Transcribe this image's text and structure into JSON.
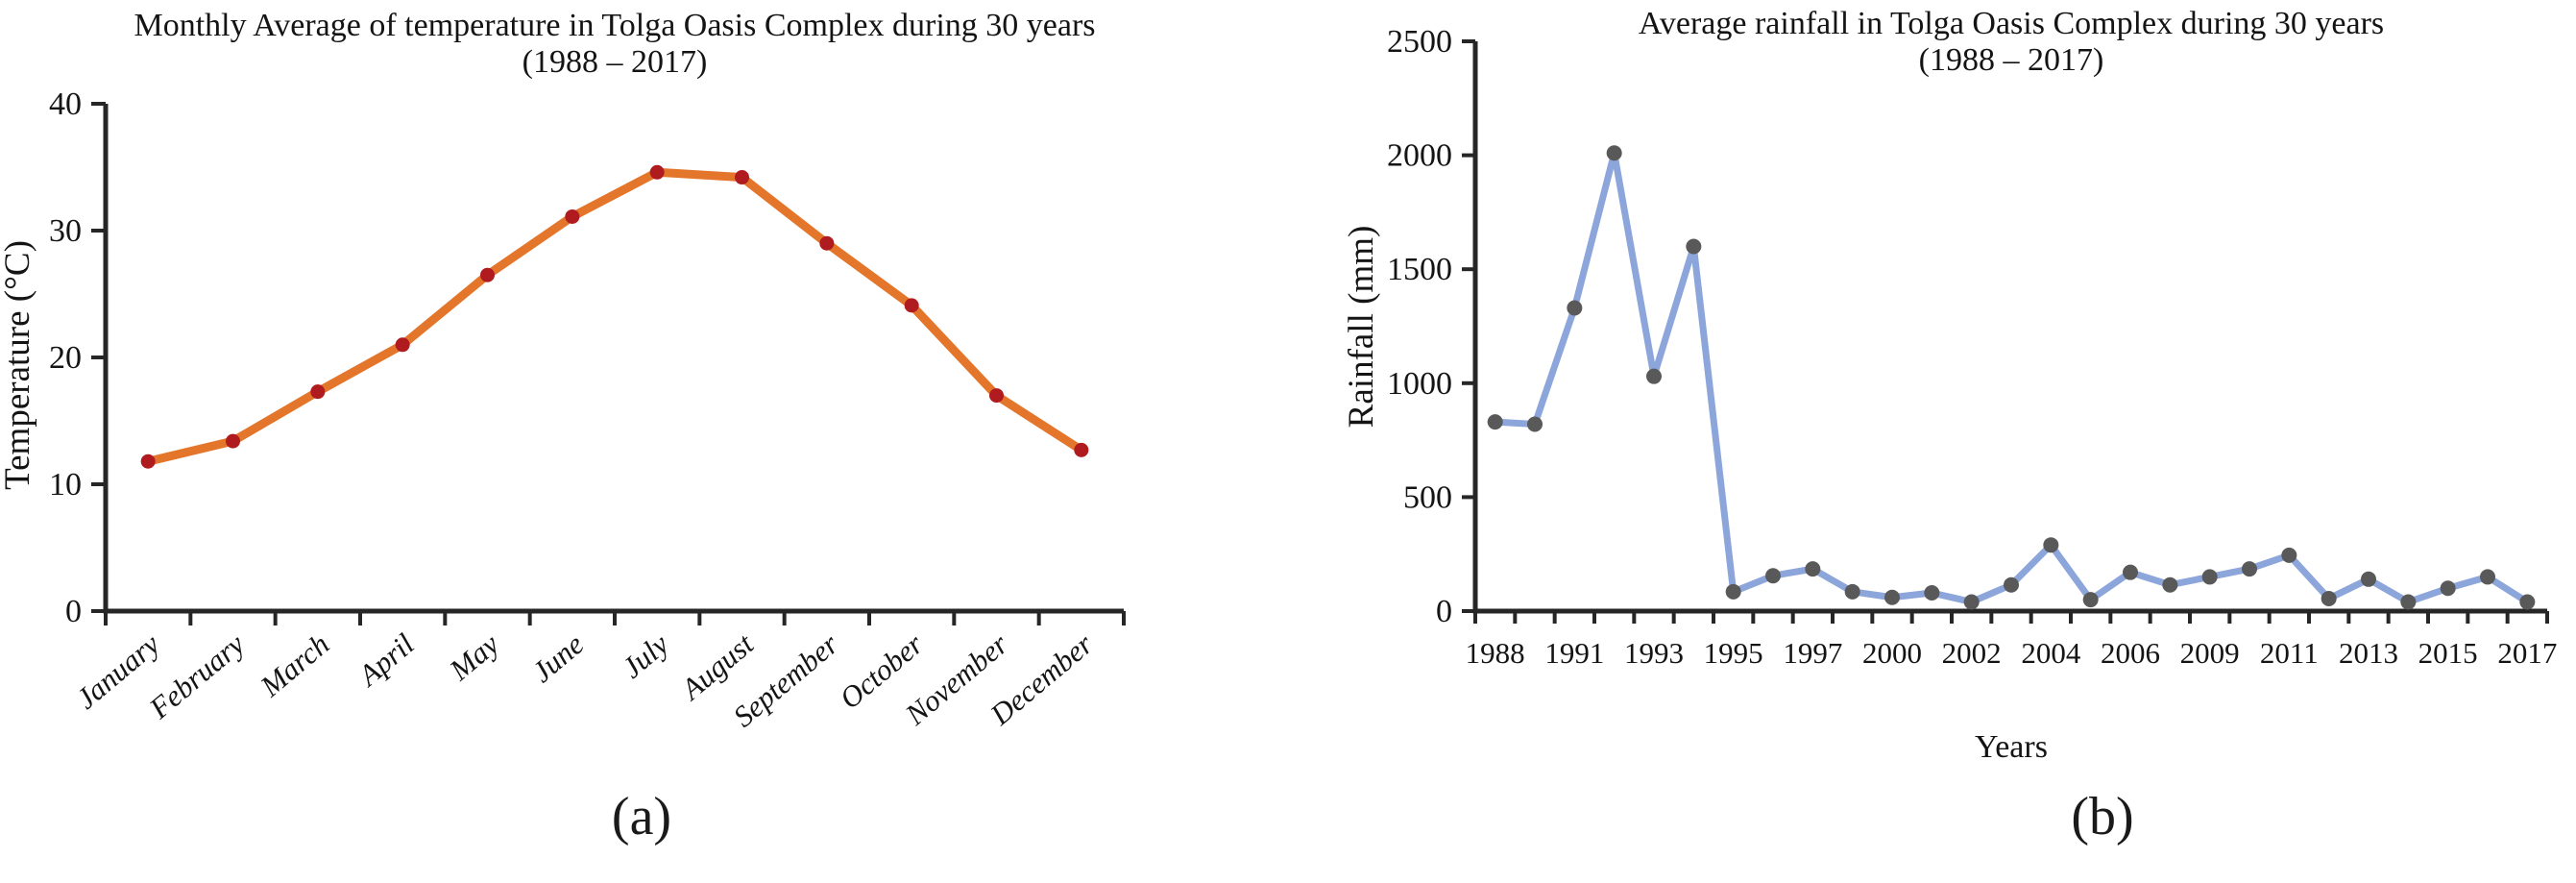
{
  "page": {
    "background": "#ffffff",
    "text_color": "#141414",
    "axis_color": "#262626"
  },
  "chart_data": [
    {
      "id": "temperature",
      "type": "line",
      "title": "Monthly Average of temperature in Tolga Oasis Complex during 30 years",
      "subtitle": "(1988 – 2017)",
      "caption": "(a)",
      "xlabel": "",
      "ylabel": "Temperature (°C)",
      "categories": [
        "January",
        "February",
        "March",
        "April",
        "May",
        "June",
        "July",
        "August",
        "September",
        "October",
        "November",
        "December"
      ],
      "values": [
        11.8,
        13.4,
        17.3,
        21.0,
        26.5,
        31.1,
        34.6,
        34.2,
        29.0,
        24.1,
        17.0,
        12.7
      ],
      "ylim": [
        0,
        40
      ],
      "y_ticks": [
        0,
        10,
        20,
        30,
        40
      ],
      "line_color": "#E4762B",
      "marker_color": "#B01B20",
      "grid": false,
      "legend": "none"
    },
    {
      "id": "rainfall",
      "type": "line",
      "title": "Average rainfall in Tolga Oasis Complex during 30 years",
      "subtitle": "(1988 – 2017)",
      "caption": "(b)",
      "xlabel": "Years",
      "ylabel": "Rainfall (mm)",
      "x_tick_labels": [
        "1988",
        "1991",
        "1993",
        "1995",
        "1997",
        "2000",
        "2002",
        "2004",
        "2006",
        "2009",
        "2011",
        "2013",
        "2015",
        "2017"
      ],
      "values": [
        830,
        820,
        1330,
        2010,
        1030,
        1600,
        85,
        155,
        185,
        85,
        60,
        80,
        40,
        115,
        290,
        50,
        170,
        115,
        150,
        185,
        245,
        55,
        140,
        40,
        100,
        150,
        40
      ],
      "ylim": [
        0,
        2500
      ],
      "y_ticks": [
        0,
        500,
        1000,
        1500,
        2000,
        2500
      ],
      "line_color": "#8CA5DA",
      "marker_color": "#595959",
      "grid": false,
      "legend": "none"
    }
  ]
}
